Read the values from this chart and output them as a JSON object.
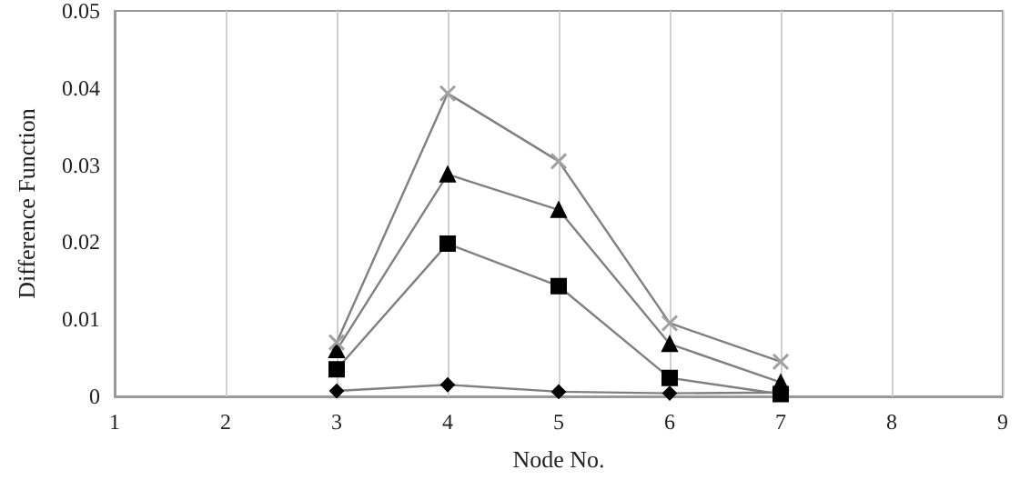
{
  "chart_data": {
    "type": "line",
    "xlabel": "Node No.",
    "ylabel": "Difference Function",
    "x": [
      3,
      4,
      5,
      6,
      7
    ],
    "series": [
      {
        "color": "#000000",
        "marker": "diamond",
        "values": [
          0.0007,
          0.0015,
          0.0006,
          0.0004,
          0.0005
        ]
      },
      {
        "color": "#000000",
        "marker": "square",
        "values": [
          0.0035,
          0.0198,
          0.0143,
          0.0024,
          0.0003
        ]
      },
      {
        "color": "#000000",
        "marker": "triangle",
        "values": [
          0.006,
          0.0288,
          0.0242,
          0.0068,
          0.0018
        ]
      },
      {
        "color": "#a0a0a0",
        "marker": "cross",
        "values": [
          0.007,
          0.0393,
          0.0305,
          0.0095,
          0.0045
        ]
      }
    ],
    "xlim": [
      1,
      9
    ],
    "xticks": [
      1,
      2,
      3,
      4,
      5,
      6,
      7,
      8,
      9
    ],
    "ylim": [
      0,
      0.05
    ],
    "yticks": [
      0,
      0.01,
      0.02,
      0.03,
      0.04,
      0.05
    ],
    "grid": "x"
  }
}
